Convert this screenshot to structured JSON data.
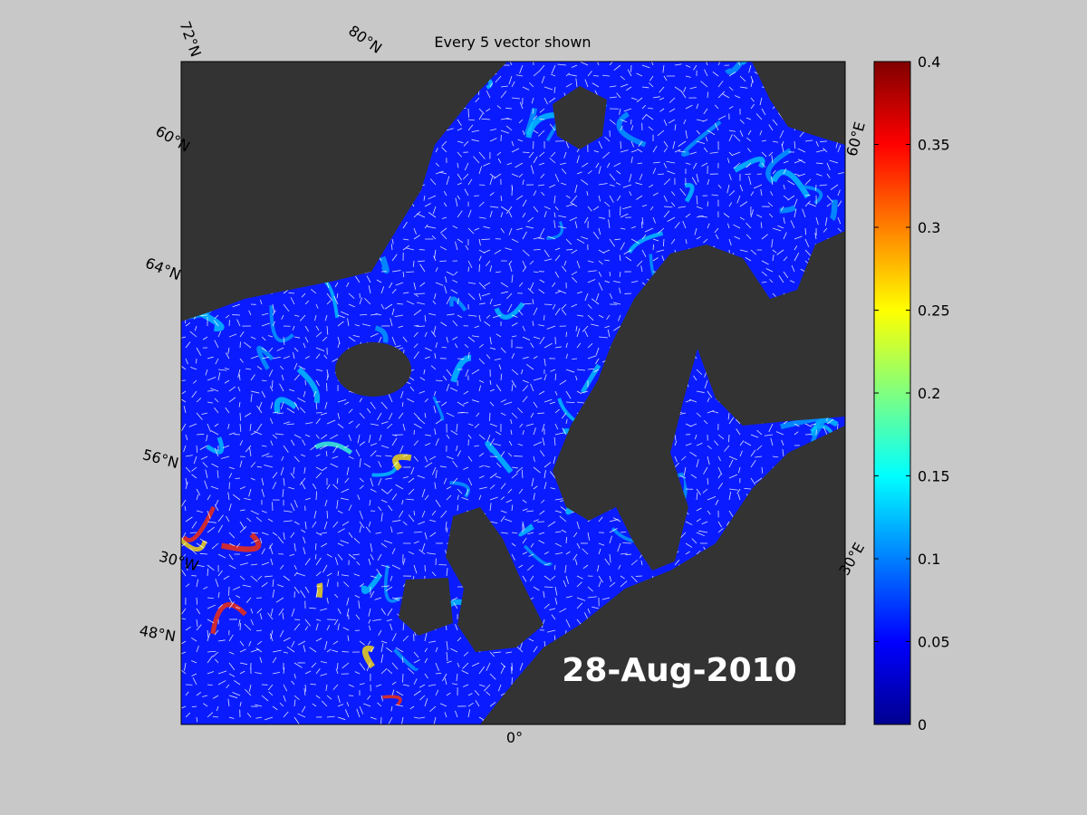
{
  "title": "Every 5 vector shown",
  "date": "28-Aug-2010",
  "graticule_labels": [
    "72°N",
    "80°N",
    "60°N",
    "64°N",
    "56°N",
    "30°W",
    "48°N",
    "0°",
    "30°E",
    "60°E"
  ],
  "colorbar": {
    "colormap": "jet",
    "lim": [
      0,
      0.4
    ],
    "ticks": [
      0,
      0.05,
      0.1,
      0.15,
      0.2,
      0.25,
      0.3,
      0.35,
      0.4
    ]
  }
}
